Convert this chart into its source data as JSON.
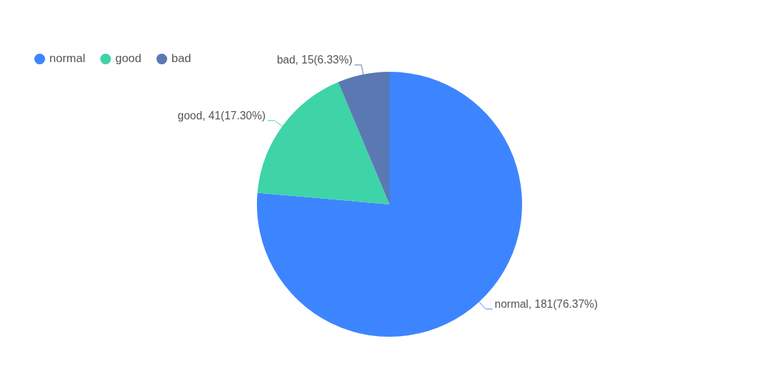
{
  "chart_data": {
    "type": "pie",
    "categories": [
      "normal",
      "good",
      "bad"
    ],
    "values": [
      181,
      41,
      15
    ],
    "colors": [
      "#3d85ff",
      "#3fd3a8",
      "#5a79b3"
    ],
    "value_labels": [
      "normal, 181(76.37%)",
      "good, 41(17.30%)",
      "bad, 15(6.33%)"
    ],
    "legend": "top left"
  }
}
